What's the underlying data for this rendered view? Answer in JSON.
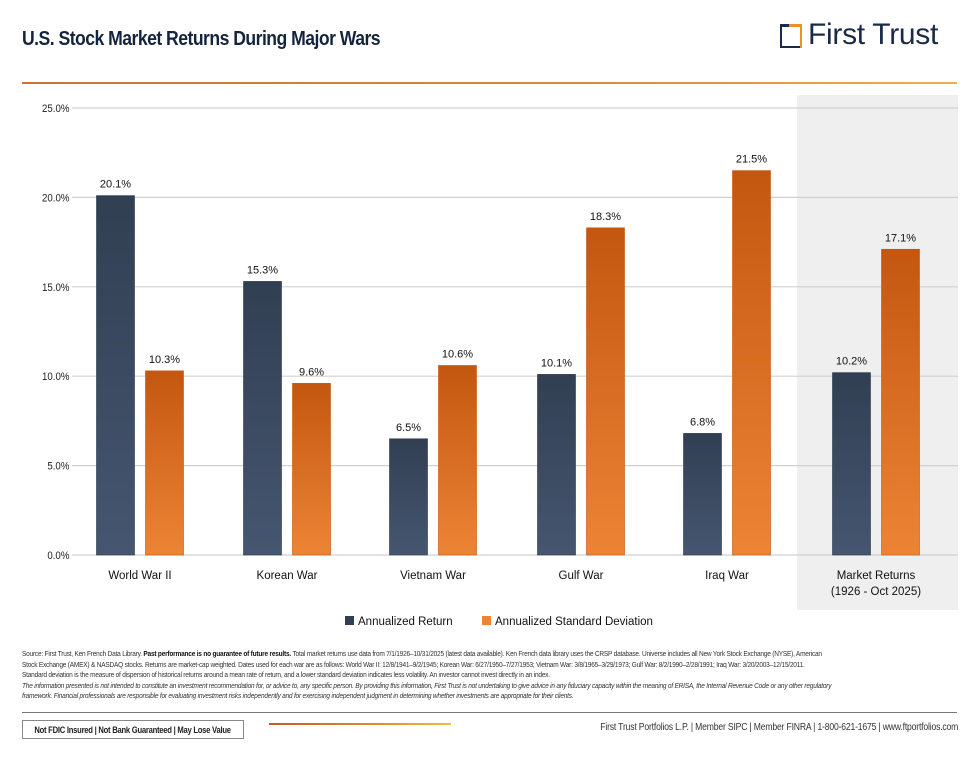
{
  "header": {
    "title": "U.S. Stock Market Returns During Major Wars",
    "logo_text": "First Trust"
  },
  "colors": {
    "return_top": "#313f52",
    "return_bottom": "#465670",
    "stdev_top": "#c45710",
    "stdev_bottom": "#ec8435",
    "highlight_bg": "#efefef",
    "grid": "#d0d0d0"
  },
  "chart_data": {
    "type": "bar",
    "title": "U.S. Stock Market Returns During Major Wars",
    "xlabel": "",
    "ylabel": "",
    "ylim": [
      0,
      25
    ],
    "yticks": [
      "0.0%",
      "5.0%",
      "10.0%",
      "15.0%",
      "20.0%",
      "25.0%"
    ],
    "ytick_values": [
      0,
      5,
      10,
      15,
      20,
      25
    ],
    "grid": true,
    "legend_position": "bottom-center",
    "categories": [
      [
        "World War II"
      ],
      [
        "Korean War"
      ],
      [
        "Vietnam War"
      ],
      [
        "Gulf War"
      ],
      [
        "Iraq War"
      ],
      [
        "Market Returns",
        "(1926 - Oct 2025)"
      ]
    ],
    "highlighted_category_index": 5,
    "series": [
      {
        "name": "Annualized Return",
        "values": [
          20.1,
          15.3,
          6.5,
          10.1,
          6.8,
          10.2
        ],
        "labels": [
          "20.1%",
          "15.3%",
          "6.5%",
          "10.1%",
          "6.8%",
          "10.2%"
        ]
      },
      {
        "name": "Annualized Standard Deviation",
        "values": [
          10.3,
          9.6,
          10.6,
          18.3,
          21.5,
          17.1
        ],
        "labels": [
          "10.3%",
          "9.6%",
          "10.6%",
          "18.3%",
          "21.5%",
          "17.1%"
        ]
      }
    ]
  },
  "footnotes": {
    "source_prefix": "Source: First Trust, Ken French Data Library. ",
    "source_bold": "Past performance is no guarantee of future results.",
    "source_line1_rest": " Total market returns use data from 7/1/1926–10/31/2025 (latest data available). Ken French data library uses the CRSP database. Universe includes all New York Stock Exchange (NYSE), American",
    "line2": "Stock Exchange (AMEX) & NASDAQ stocks. Returns are market-cap weighted. Dates used for each war are as follows: World War II: 12/8/1941–9/2/1945; Korean War: 6/27/1950–7/27/1953; Vietnam War: 3/8/1965–3/29/1973; Gulf War: 8/2/1990–2/28/1991; Iraq War: 3/20/2003–12/15/2011.",
    "line3": "Standard deviation is the measure of dispersion of historical returns around a mean rate of return, and a lower standard deviation indicates less volatility. An investor cannot invest directly in an index.",
    "line4": "The information presented is not intended to constitute an investment recommendation for, or advice to, any specific person. By providing this information, First Trust is not undertaking to give advice in any fiduciary capacity within the meaning of ERISA, the Internal Revenue Code or any other regulatory",
    "line5": "framework. Financial professionals are responsible for evaluating investment risks independently and for exercising independent judgment in determining whether investments are appropriate for their clients."
  },
  "footer": {
    "badge": "Not FDIC Insured  |  Not Bank Guaranteed  |  May Lose Value",
    "contact": "First Trust Portfolios L.P.  |  Member SIPC  |  Member FINRA  |  1-800-621-1675  |  www.ftportfolios.com"
  }
}
